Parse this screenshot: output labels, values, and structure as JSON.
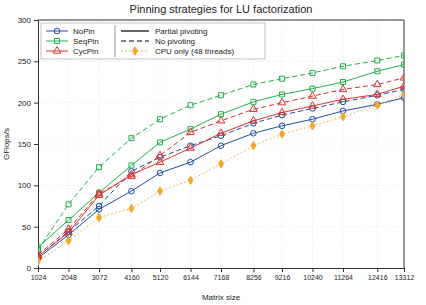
{
  "chart_data": {
    "type": "line",
    "title": "Pinning strategies for LU factorization",
    "x_label": "Matrix size",
    "y_label": "GFlops/s",
    "x": [
      1024,
      2048,
      3072,
      4160,
      5120,
      6144,
      7168,
      8256,
      9216,
      10240,
      11264,
      12416,
      13312
    ],
    "xlim": [
      1024,
      13312
    ],
    "xticks": [
      1024,
      2048,
      3072,
      4160,
      5120,
      6144,
      7168,
      8256,
      9216,
      10240,
      11264,
      12416,
      13312
    ],
    "ylim": [
      0,
      300
    ],
    "yticks": [
      0,
      50,
      100,
      150,
      200,
      250,
      300
    ],
    "grid": true,
    "legend": "upper left",
    "line_styles": [
      {
        "label": "Partial pivoting",
        "line_style": "solid"
      },
      {
        "label": "No pivoting",
        "line_style": "dashed"
      }
    ],
    "series": [
      {
        "name": "NoPin",
        "color": "#1f4ea0",
        "marker": "circle",
        "line_style": "solid",
        "values": [
          12,
          40,
          71,
          93,
          115,
          128,
          148,
          163,
          172,
          180,
          190,
          198,
          206
        ]
      },
      {
        "name": "NoPin",
        "color": "#1f4ea0",
        "marker": "circle",
        "line_style": "dashed",
        "values": [
          14,
          44,
          75,
          117,
          134,
          148,
          160,
          175,
          185,
          193,
          201,
          209,
          216
        ]
      },
      {
        "name": "SeqPin",
        "color": "#22b04b",
        "marker": "square",
        "line_style": "solid",
        "values": [
          25,
          58,
          91,
          124,
          152,
          168,
          186,
          201,
          210,
          217,
          225,
          238,
          246
        ]
      },
      {
        "name": "SeqPin",
        "color": "#22b04b",
        "marker": "square",
        "line_style": "dashed",
        "values": [
          22,
          77,
          122,
          157,
          180,
          197,
          209,
          222,
          229,
          236,
          244,
          251,
          257
        ]
      },
      {
        "name": "CycPin",
        "color": "#e0302f",
        "marker": "triangle",
        "line_style": "solid",
        "values": [
          14,
          43,
          88,
          113,
          128,
          145,
          163,
          178,
          188,
          196,
          204,
          210,
          220
        ]
      },
      {
        "name": "CycPin",
        "color": "#e0302f",
        "marker": "triangle",
        "line_style": "dashed",
        "values": [
          16,
          47,
          90,
          111,
          136,
          164,
          178,
          192,
          200,
          208,
          216,
          222,
          230
        ]
      },
      {
        "name": "CPU only (48 threads)",
        "color": "#f5a623",
        "marker": "diamond",
        "line_style": "dotted",
        "values": [
          8,
          33,
          61,
          72,
          93,
          106,
          126,
          148,
          162,
          172,
          183,
          197,
          210
        ]
      }
    ]
  }
}
